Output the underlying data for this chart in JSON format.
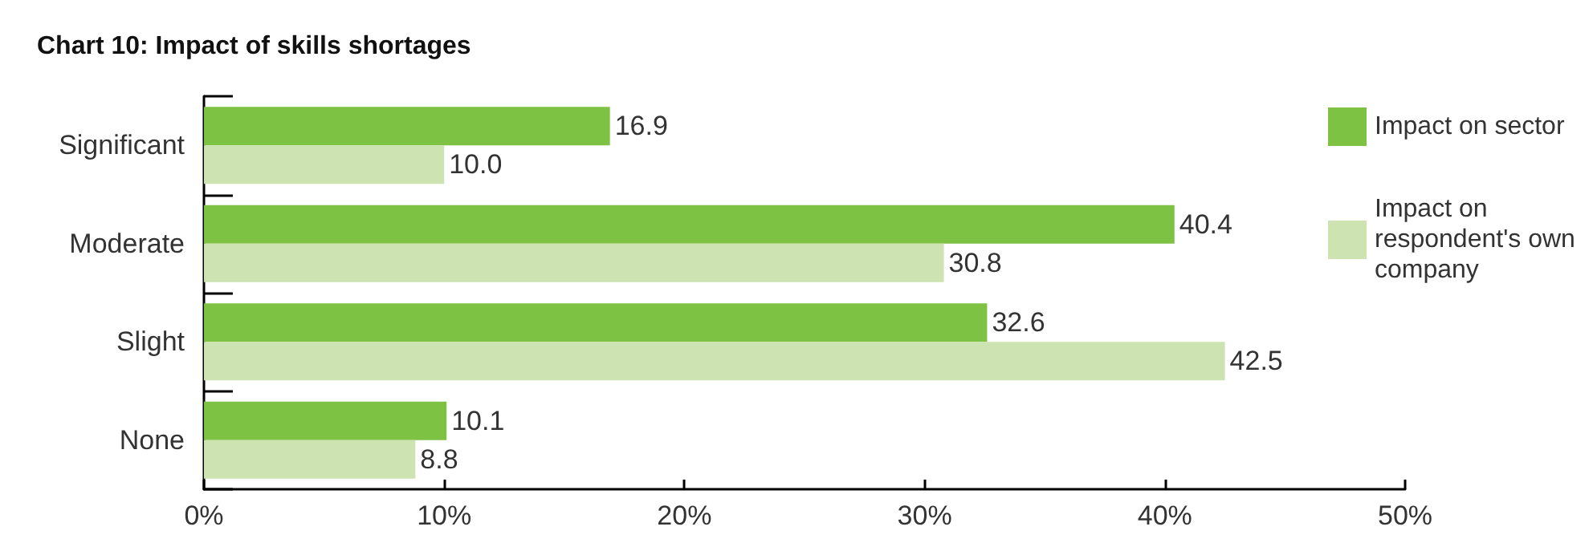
{
  "chart_data": {
    "type": "bar",
    "orientation": "horizontal",
    "title": "Chart 10: Impact of skills shortages",
    "categories": [
      "Significant",
      "Moderate",
      "Slight",
      "None"
    ],
    "series": [
      {
        "name": "Impact on sector",
        "color": "#7dc242",
        "values": [
          16.9,
          40.4,
          32.6,
          10.1
        ],
        "value_labels": [
          "16.9",
          "40.4",
          "32.6",
          "10.1"
        ]
      },
      {
        "name": "Impact on respondent's own company",
        "color": "#cde3b1",
        "values": [
          10.0,
          30.8,
          42.5,
          8.8
        ],
        "value_labels": [
          "10.0",
          "30.8",
          "42.5",
          "8.8"
        ]
      }
    ],
    "xlim": [
      0,
      50
    ],
    "xticks": [
      {
        "value": 0,
        "label": "0%"
      },
      {
        "value": 10,
        "label": "10%"
      },
      {
        "value": 20,
        "label": "20%"
      },
      {
        "value": 30,
        "label": "30%"
      },
      {
        "value": 40,
        "label": "40%"
      },
      {
        "value": 50,
        "label": "50%"
      }
    ],
    "grid": false,
    "legend": "right"
  }
}
